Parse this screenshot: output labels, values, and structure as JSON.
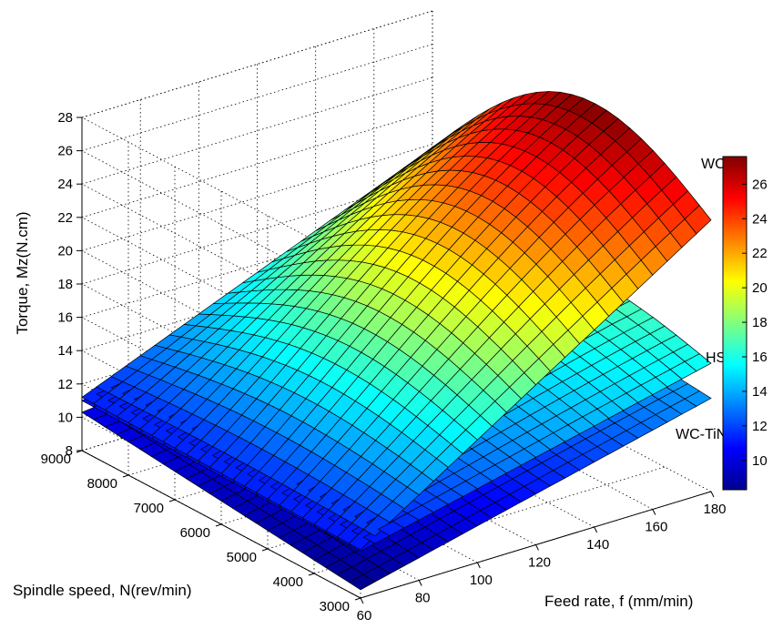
{
  "chart_data": {
    "type": "surface3d",
    "title": "",
    "xlabel": "Feed rate, f (mm/min)",
    "ylabel": "Spindle speed, N(rev/min)",
    "zlabel": "Torque, Mz(N.cm)",
    "x_ticks": [
      "60",
      "80",
      "100",
      "120",
      "140",
      "160",
      "180"
    ],
    "y_ticks": [
      "3000",
      "4000",
      "5000",
      "6000",
      "7000",
      "8000",
      "9000"
    ],
    "z_ticks": [
      "8",
      "10",
      "12",
      "14",
      "16",
      "18",
      "20",
      "22",
      "24",
      "26",
      "28"
    ],
    "xlim": [
      60,
      180
    ],
    "ylim": [
      3000,
      9000
    ],
    "zlim": [
      8,
      28
    ],
    "grid": true,
    "colormap": "jet",
    "colorbar": {
      "range": [
        8.3,
        27.6
      ],
      "ticks": [
        "10",
        "12",
        "14",
        "16",
        "18",
        "20",
        "22",
        "24",
        "26"
      ]
    },
    "series": [
      {
        "name": "WC",
        "corner_values": {
          "f60_N3000": 10.9,
          "f60_N9000": 11.2,
          "f180_N3000": 24.3,
          "f180_N9000": 19.8
        },
        "peak_value": 27.6
      },
      {
        "name": "HSS",
        "corner_values": {
          "f60_N3000": 10.8,
          "f60_N9000": 11.0,
          "f180_N3000": 15.7,
          "f180_N9000": 14.0
        },
        "peak_value": 17.0
      },
      {
        "name": "WC-TiN",
        "corner_values": {
          "f60_N3000": 8.5,
          "f60_N9000": 10.3,
          "f180_N3000": 13.6,
          "f180_N9000": 12.4
        },
        "peak_value": 14.0
      }
    ]
  }
}
